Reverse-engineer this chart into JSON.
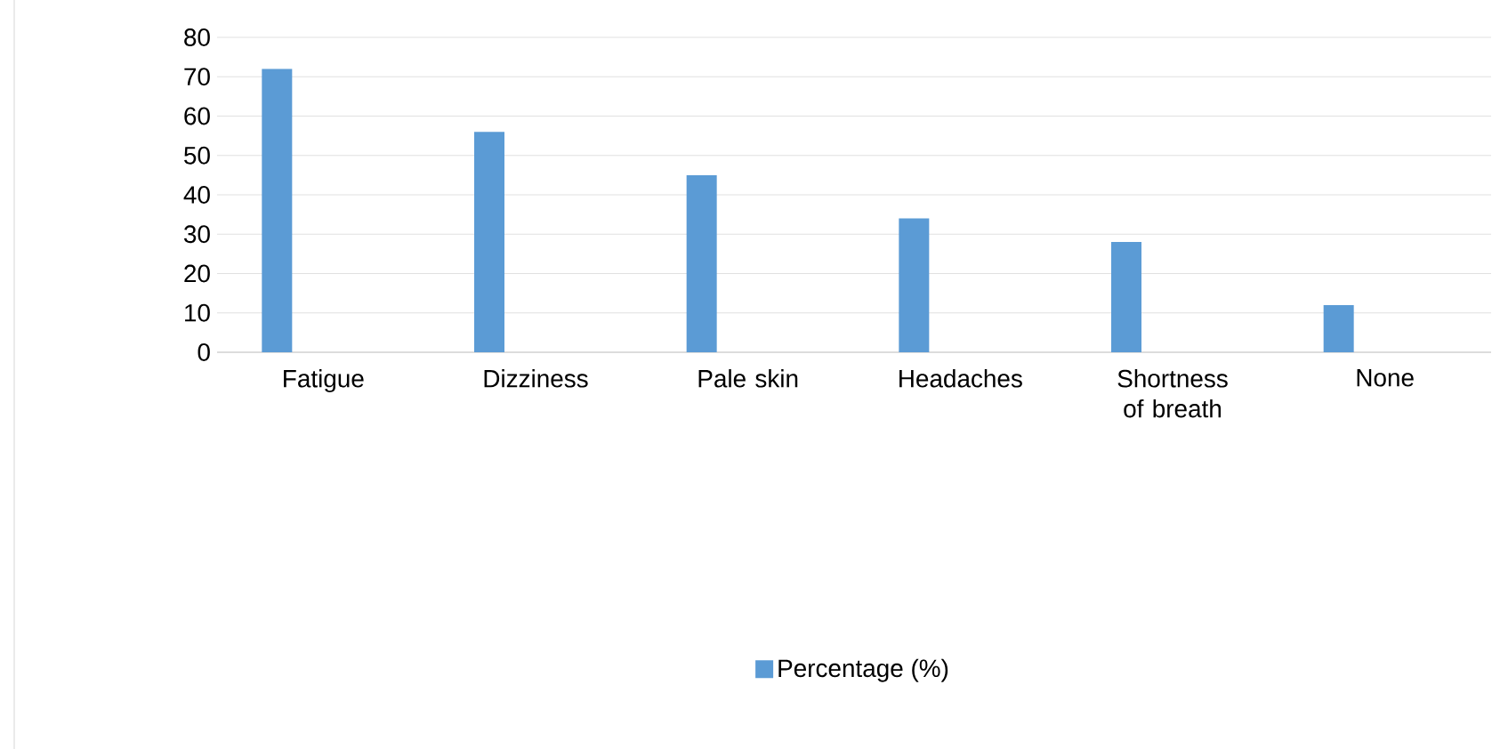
{
  "chart_data": {
    "type": "bar",
    "categories": [
      "Fatigue",
      "Dizziness",
      "Pale skin",
      "Headaches",
      "Shortness of breath",
      "None"
    ],
    "series": [
      {
        "name": "Percentage (%)",
        "color": "#5b9bd5",
        "values": [
          72,
          56,
          45,
          34,
          28,
          12
        ]
      }
    ],
    "ylim": [
      0,
      80
    ],
    "yticks": [
      0,
      10,
      20,
      30,
      40,
      50,
      60,
      70,
      80
    ],
    "grid": "y",
    "legend": "bottom"
  }
}
